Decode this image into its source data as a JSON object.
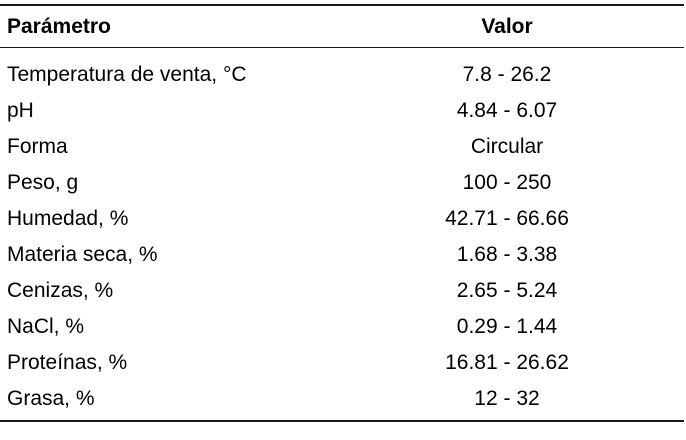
{
  "table": {
    "headers": {
      "param": "Parámetro",
      "value": "Valor"
    },
    "rows": [
      {
        "param": "Temperatura de venta, °C",
        "value": "7.8 - 26.2"
      },
      {
        "param": "pH",
        "value": "4.84 - 6.07"
      },
      {
        "param": "Forma",
        "value": "Circular"
      },
      {
        "param": "Peso, g",
        "value": "100 - 250"
      },
      {
        "param": "Humedad, %",
        "value": "42.71 - 66.66"
      },
      {
        "param": "Materia seca, %",
        "value": "1.68 - 3.38"
      },
      {
        "param": "Cenizas, %",
        "value": "2.65 - 5.24"
      },
      {
        "param": "NaCl, %",
        "value": "0.29 - 1.44"
      },
      {
        "param": "Proteínas, %",
        "value": "16.81 - 26.62"
      },
      {
        "param": "Grasa, %",
        "value": "12 - 32"
      }
    ],
    "colors": {
      "text": "#000000",
      "rule": "#1a1a1a",
      "background": "#ffffff"
    }
  }
}
